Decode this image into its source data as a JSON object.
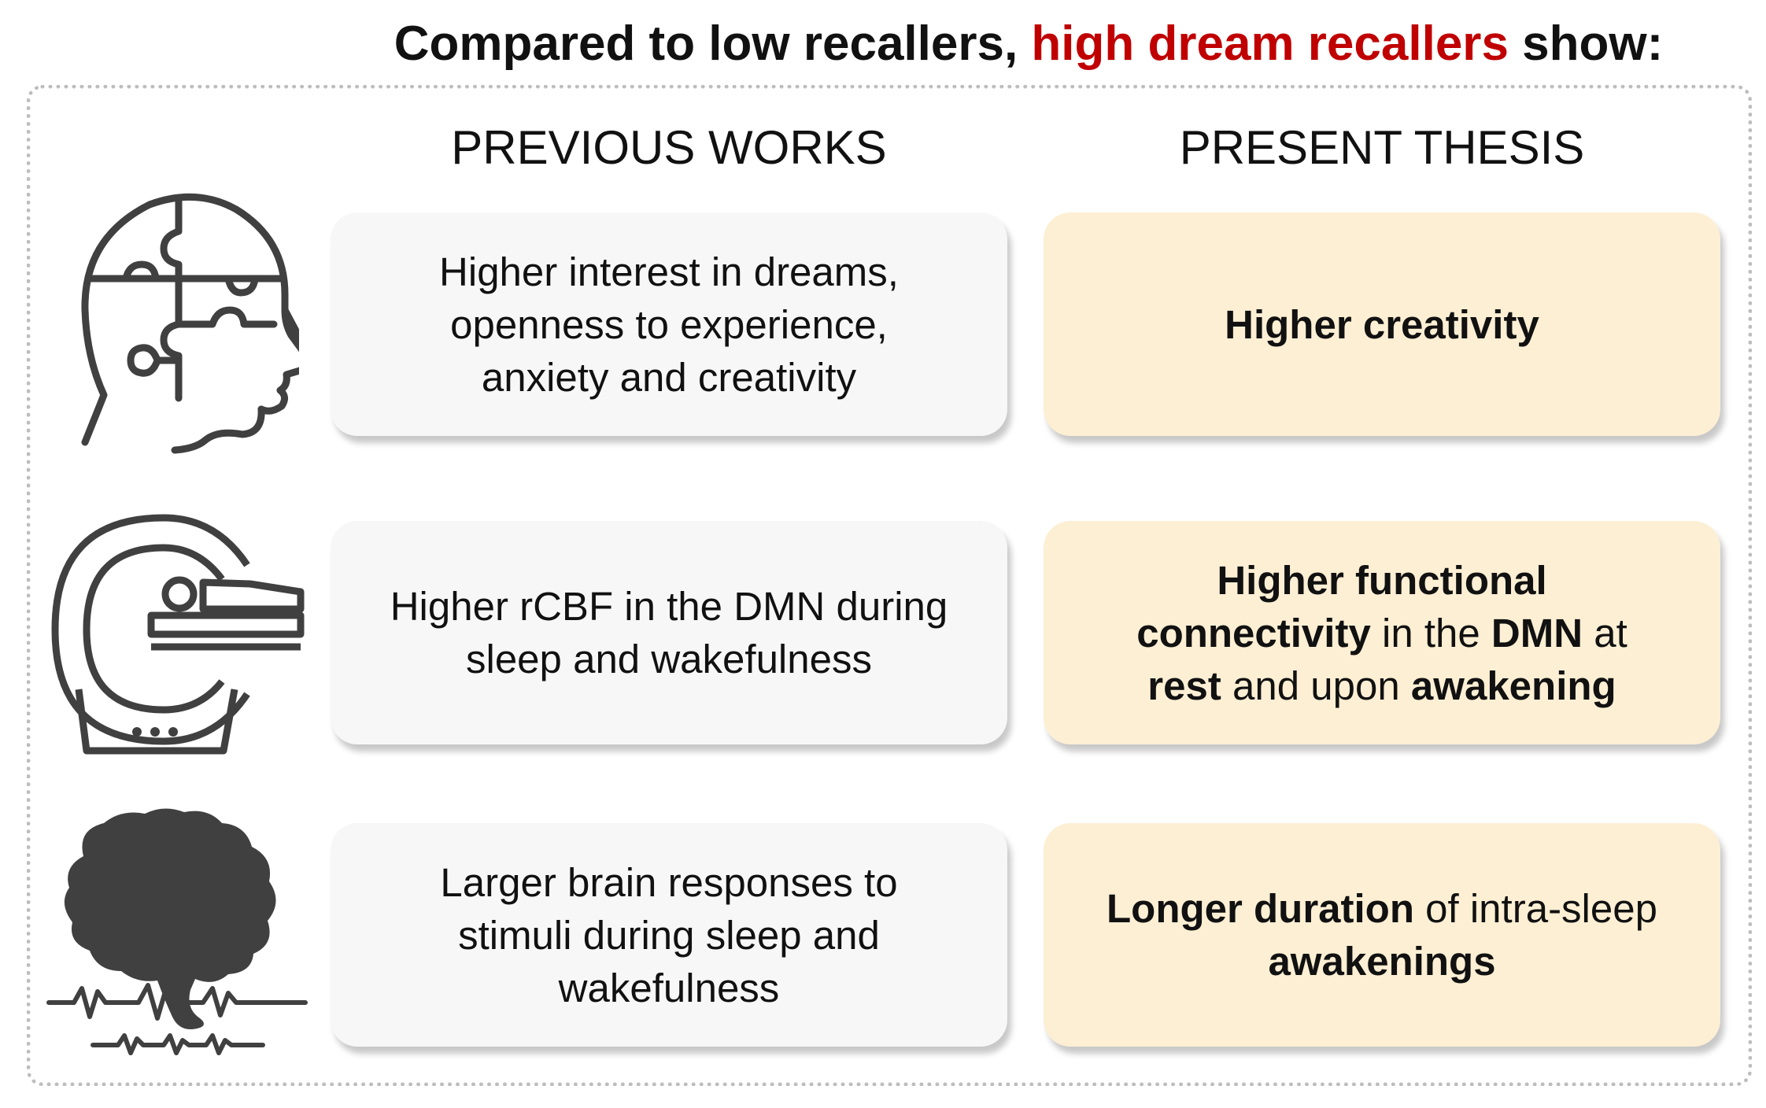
{
  "title": {
    "prefix": "Compared to low recallers,",
    "highlight": "high dream recallers",
    "suffix": "show:",
    "highlight_color": "#c00000"
  },
  "columns": {
    "previous": "PREVIOUS WORKS",
    "present": "PRESENT THESIS"
  },
  "rows": [
    {
      "icon": "head-puzzle-icon",
      "previous": [
        "Higher interest in dreams,",
        "openness to experience,",
        "anxiety and creativity"
      ],
      "present": [
        [
          {
            "text": "Higher creativity",
            "bold": true
          }
        ]
      ]
    },
    {
      "icon": "mri-scanner-icon",
      "previous": [
        "Higher rCBF in the DMN during",
        "sleep and wakefulness"
      ],
      "present": [
        [
          {
            "text": "Higher functional",
            "bold": true
          }
        ],
        [
          {
            "text": "connectivity",
            "bold": true
          },
          {
            "text": " in the ",
            "bold": false
          },
          {
            "text": "DMN",
            "bold": true
          },
          {
            "text": " at",
            "bold": false
          }
        ],
        [
          {
            "text": "rest",
            "bold": true
          },
          {
            "text": " and upon ",
            "bold": false
          },
          {
            "text": "awakening",
            "bold": true
          }
        ]
      ]
    },
    {
      "icon": "brain-eeg-icon",
      "previous": [
        "Larger brain responses to",
        "stimuli during sleep and",
        "wakefulness"
      ],
      "present": [
        [
          {
            "text": "Longer duration",
            "bold": true
          },
          {
            "text": " of intra-sleep",
            "bold": false
          }
        ],
        [
          {
            "text": "awakenings",
            "bold": true
          }
        ]
      ]
    }
  ],
  "colors": {
    "previous_box": "#f7f7f7",
    "present_box": "#fdefd4",
    "icon": "#404040",
    "frame": "#bdbdbd"
  }
}
